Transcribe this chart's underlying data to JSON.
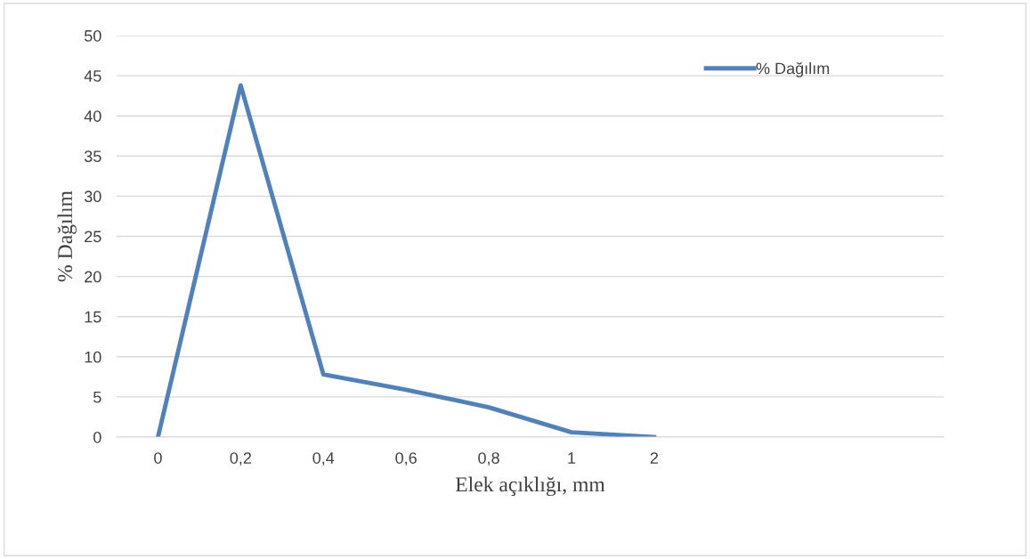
{
  "chart_data": {
    "type": "line",
    "xlabel": "Elek açıklığı, mm",
    "ylabel": "% Dağılım",
    "categories": [
      "0",
      "0,2",
      "0,4",
      "0,6",
      "0,8",
      "1",
      "2",
      null,
      null,
      null
    ],
    "series": [
      {
        "name": "% Dağılım",
        "color": "#4f81bd",
        "values": [
          0,
          43.8,
          7.8,
          5.9,
          3.7,
          0.6,
          0,
          null,
          null,
          null
        ]
      }
    ],
    "ylim": [
      0,
      50
    ],
    "yticks": [
      0,
      5,
      10,
      15,
      20,
      25,
      30,
      35,
      40,
      45,
      50
    ],
    "grid": "y",
    "legend": "top right",
    "marker": "none",
    "line_style": "solid"
  }
}
